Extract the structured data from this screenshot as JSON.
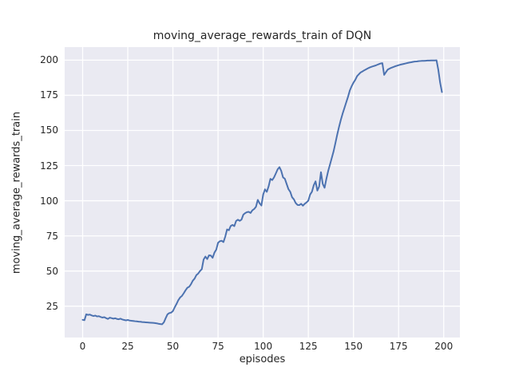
{
  "chart_data": {
    "type": "line",
    "title": "moving_average_rewards_train of DQN",
    "xlabel": "episodes",
    "ylabel": "moving_average_rewards_train",
    "x_ticks": [
      0,
      25,
      50,
      75,
      100,
      125,
      150,
      175,
      200
    ],
    "y_ticks": [
      25,
      50,
      75,
      100,
      125,
      150,
      175,
      200
    ],
    "xlim": [
      -9.95,
      208.95
    ],
    "ylim": [
      2.7,
      209.3
    ],
    "grid": true,
    "legend_position": "none",
    "line_color": "#4c72b0",
    "plot_background_color": "#eaeaf2",
    "grid_color": "#ffffff",
    "text_color": "#262626",
    "series": [
      {
        "name": "moving_average_rewards_train",
        "x_note": "episode index 0-199, one point per episode",
        "y": [
          15.3,
          15.0,
          19.2,
          18.8,
          19.0,
          18.4,
          18.0,
          18.3,
          17.7,
          17.9,
          17.3,
          16.9,
          17.2,
          16.5,
          15.9,
          16.8,
          16.5,
          16.1,
          16.4,
          15.9,
          15.7,
          16.1,
          15.5,
          15.2,
          14.9,
          15.2,
          14.8,
          14.6,
          14.5,
          14.3,
          14.2,
          14.0,
          13.9,
          13.7,
          13.6,
          13.5,
          13.4,
          13.3,
          13.2,
          13.1,
          13.0,
          12.8,
          12.5,
          12.3,
          12.1,
          13.5,
          16.5,
          19.2,
          20.1,
          20.4,
          21.5,
          24.2,
          26.6,
          29.3,
          31.2,
          32.3,
          34.2,
          36.3,
          38.1,
          38.8,
          40.6,
          43.1,
          44.6,
          47.1,
          48.2,
          50.0,
          51.3,
          58.2,
          60.3,
          58.5,
          61.2,
          61.0,
          59.4,
          63.1,
          65.2,
          70.1,
          71.2,
          71.5,
          70.6,
          74.5,
          79.6,
          79.0,
          82.0,
          82.8,
          81.9,
          85.6,
          86.5,
          85.7,
          86.6,
          90.1,
          91.2,
          91.9,
          92.1,
          91.3,
          93.2,
          94.1,
          95.7,
          100.6,
          98.2,
          96.6,
          104.4,
          108.1,
          106.3,
          110.2,
          115.6,
          114.7,
          116.6,
          119.4,
          122.3,
          123.9,
          121.2,
          116.6,
          115.6,
          111.9,
          108.2,
          106.3,
          102.5,
          101.0,
          98.4,
          97.0,
          96.9,
          97.8,
          96.5,
          97.8,
          98.8,
          100.1,
          104.4,
          106.4,
          111.0,
          113.8,
          107.2,
          110.1,
          120.3,
          111.9,
          109.2,
          115.6,
          121.2,
          125.8,
          130.5,
          135.2,
          141.0,
          147.0,
          152.5,
          157.5,
          162.0,
          166.0,
          170.0,
          174.0,
          178.5,
          181.5,
          184.0,
          186.0,
          188.6,
          190.0,
          191.3,
          192.0,
          192.8,
          193.5,
          194.2,
          194.8,
          195.3,
          195.7,
          196.1,
          196.6,
          197.1,
          197.6,
          197.9,
          189.5,
          191.5,
          193.3,
          194.0,
          194.6,
          195.1,
          195.6,
          196.0,
          196.4,
          196.8,
          197.1,
          197.4,
          197.7,
          198.0,
          198.3,
          198.5,
          198.8,
          199.0,
          199.1,
          199.3,
          199.4,
          199.5,
          199.5,
          199.6,
          199.7,
          199.7,
          199.8,
          199.8,
          199.8,
          199.9,
          193.0,
          184.0,
          177.3
        ]
      }
    ]
  }
}
